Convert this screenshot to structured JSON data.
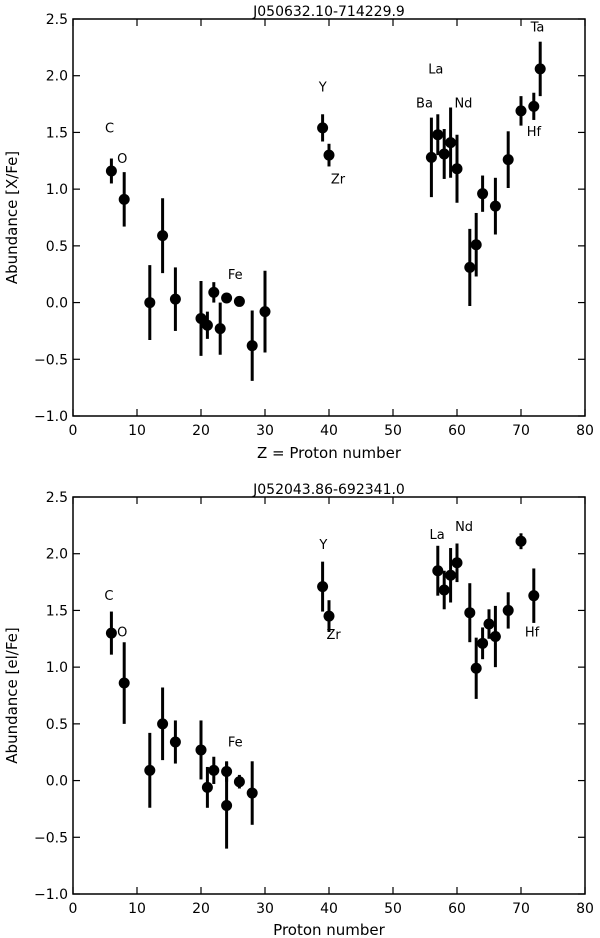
{
  "chart_data": [
    {
      "type": "scatter",
      "title": "J050632.10-714229.9",
      "xlabel": "Z = Proton number",
      "ylabel": "Abundance [X/Fe]",
      "xlim": [
        0,
        80
      ],
      "ylim": [
        -1.0,
        2.5
      ],
      "xticks": [
        "0",
        "10",
        "20",
        "30",
        "40",
        "50",
        "60",
        "70",
        "80"
      ],
      "yticks": [
        "−1.0",
        "−0.5",
        "0.0",
        "0.5",
        "1.0",
        "1.5",
        "2.0",
        "2.5"
      ],
      "grid": false,
      "points": [
        {
          "x": 6,
          "y": 1.16,
          "err": 0.11
        },
        {
          "x": 8,
          "y": 0.91,
          "err": 0.24
        },
        {
          "x": 12,
          "y": 0.0,
          "err": 0.33
        },
        {
          "x": 14,
          "y": 0.59,
          "err": 0.33
        },
        {
          "x": 16,
          "y": 0.03,
          "err": 0.28
        },
        {
          "x": 20,
          "y": -0.14,
          "err": 0.33
        },
        {
          "x": 21,
          "y": -0.2,
          "err": 0.12
        },
        {
          "x": 22,
          "y": 0.09,
          "err": 0.09
        },
        {
          "x": 23,
          "y": -0.23,
          "err": 0.23
        },
        {
          "x": 24,
          "y": 0.04,
          "err": 0.0
        },
        {
          "x": 26,
          "y": 0.01,
          "err": 0.0
        },
        {
          "x": 28,
          "y": -0.38,
          "err": 0.31
        },
        {
          "x": 30,
          "y": -0.08,
          "err": 0.36
        },
        {
          "x": 39,
          "y": 1.54,
          "err": 0.12
        },
        {
          "x": 40,
          "y": 1.3,
          "err": 0.1
        },
        {
          "x": 56,
          "y": 1.28,
          "err": 0.35
        },
        {
          "x": 57,
          "y": 1.48,
          "err": 0.18
        },
        {
          "x": 58,
          "y": 1.31,
          "err": 0.22
        },
        {
          "x": 59,
          "y": 1.41,
          "err": 0.31
        },
        {
          "x": 60,
          "y": 1.18,
          "err": 0.3
        },
        {
          "x": 62,
          "y": 0.31,
          "err": 0.34
        },
        {
          "x": 63,
          "y": 0.51,
          "err": 0.28
        },
        {
          "x": 64,
          "y": 0.96,
          "err": 0.16
        },
        {
          "x": 66,
          "y": 0.85,
          "err": 0.25
        },
        {
          "x": 68,
          "y": 1.26,
          "err": 0.25
        },
        {
          "x": 70,
          "y": 1.69,
          "err": 0.13
        },
        {
          "x": 72,
          "y": 1.73,
          "err": 0.12
        },
        {
          "x": 73,
          "y": 2.06,
          "err": 0.24
        }
      ],
      "annotations": [
        {
          "text": "C",
          "x": 5.0,
          "y": 1.5
        },
        {
          "text": "O",
          "x": 6.9,
          "y": 1.23
        },
        {
          "text": "Fe",
          "x": 24.2,
          "y": 0.21
        },
        {
          "text": "Y",
          "x": 38.4,
          "y": 1.86
        },
        {
          "text": "Zr",
          "x": 40.3,
          "y": 1.05
        },
        {
          "text": "La",
          "x": 55.5,
          "y": 2.02
        },
        {
          "text": "Ba",
          "x": 53.6,
          "y": 1.72
        },
        {
          "text": "Nd",
          "x": 59.6,
          "y": 1.72
        },
        {
          "text": "Hf",
          "x": 70.9,
          "y": 1.47
        },
        {
          "text": "Ta",
          "x": 71.5,
          "y": 2.39
        }
      ]
    },
    {
      "type": "scatter",
      "title": "J052043.86-692341.0",
      "xlabel": "Proton number",
      "ylabel": "Abundance [el/Fe]",
      "xlim": [
        0,
        80
      ],
      "ylim": [
        -1.0,
        2.5
      ],
      "xticks": [
        "0",
        "10",
        "20",
        "30",
        "40",
        "50",
        "60",
        "70",
        "80"
      ],
      "yticks": [
        "−1.0",
        "−0.5",
        "0.0",
        "0.5",
        "1.0",
        "1.5",
        "2.0",
        "2.5"
      ],
      "grid": false,
      "points": [
        {
          "x": 6,
          "y": 1.3,
          "err": 0.19
        },
        {
          "x": 8,
          "y": 0.86,
          "err": 0.36
        },
        {
          "x": 12,
          "y": 0.09,
          "err": 0.33
        },
        {
          "x": 14,
          "y": 0.5,
          "err": 0.32
        },
        {
          "x": 16,
          "y": 0.34,
          "err": 0.19
        },
        {
          "x": 20,
          "y": 0.27,
          "err": 0.26
        },
        {
          "x": 21,
          "y": -0.06,
          "err": 0.18
        },
        {
          "x": 22,
          "y": 0.09,
          "err": 0.12
        },
        {
          "x": 24,
          "y": -0.22,
          "err": 0.38
        },
        {
          "x": 24,
          "y": 0.08,
          "err": 0.09
        },
        {
          "x": 26,
          "y": -0.01,
          "err": 0.06
        },
        {
          "x": 28,
          "y": -0.11,
          "err": 0.28
        },
        {
          "x": 39,
          "y": 1.71,
          "err": 0.22
        },
        {
          "x": 40,
          "y": 1.45,
          "err": 0.14
        },
        {
          "x": 57,
          "y": 1.85,
          "err": 0.22
        },
        {
          "x": 58,
          "y": 1.68,
          "err": 0.17
        },
        {
          "x": 59,
          "y": 1.81,
          "err": 0.24
        },
        {
          "x": 60,
          "y": 1.92,
          "err": 0.17
        },
        {
          "x": 62,
          "y": 1.48,
          "err": 0.26
        },
        {
          "x": 63,
          "y": 0.99,
          "err": 0.27
        },
        {
          "x": 64,
          "y": 1.21,
          "err": 0.14
        },
        {
          "x": 65,
          "y": 1.38,
          "err": 0.13
        },
        {
          "x": 66,
          "y": 1.27,
          "err": 0.27
        },
        {
          "x": 68,
          "y": 1.5,
          "err": 0.16
        },
        {
          "x": 70,
          "y": 2.11,
          "err": 0.07
        },
        {
          "x": 72,
          "y": 1.63,
          "err": 0.24
        }
      ],
      "annotations": [
        {
          "text": "C",
          "x": 4.9,
          "y": 1.59
        },
        {
          "text": "O",
          "x": 6.9,
          "y": 1.27
        },
        {
          "text": "Fe",
          "x": 24.2,
          "y": 0.3
        },
        {
          "text": "Y",
          "x": 38.5,
          "y": 2.04
        },
        {
          "text": "Zr",
          "x": 39.6,
          "y": 1.25
        },
        {
          "text": "La",
          "x": 55.7,
          "y": 2.13
        },
        {
          "text": "Nd",
          "x": 59.7,
          "y": 2.2
        },
        {
          "text": "Hf",
          "x": 70.6,
          "y": 1.27
        }
      ]
    }
  ]
}
